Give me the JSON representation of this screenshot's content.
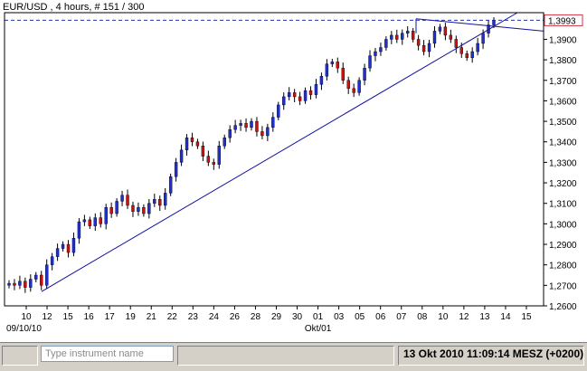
{
  "window": {
    "title": "EUR/USD , 4 hours, # 151 / 300"
  },
  "price_tag": "1,3993",
  "y_ticks": [
    "1,3900",
    "1,3800",
    "1,3700",
    "1,3600",
    "1,3500",
    "1,3400",
    "1,3300",
    "1,3200",
    "1,3100",
    "1,3000",
    "1,2900",
    "1,2800",
    "1,2700",
    "1,2600"
  ],
  "x_ticks": [
    "10",
    "12",
    "15",
    "16",
    "17",
    "19",
    "21",
    "22",
    "23",
    "24",
    "26",
    "28",
    "29",
    "30",
    "01",
    "03",
    "05",
    "06",
    "07",
    "08",
    "10",
    "12",
    "13",
    "14",
    "15"
  ],
  "x_sublabels": {
    "start_date": "09/10/10",
    "month": "Okt/01"
  },
  "colors": {
    "up": "#1f2fd0",
    "down": "#cc1010",
    "trend": "#1010a0",
    "level": "#2030b0",
    "tag": "#d03040"
  },
  "status": {
    "search_placeholder": "Type instrument name",
    "datetime": "13 Okt 2010 11:09:14  MESZ (+0200)"
  },
  "chart_data": {
    "type": "candlestick",
    "title": "EUR/USD , 4 hours, # 151 / 300",
    "ylim": [
      1.26,
      1.403
    ],
    "current_price": 1.3993,
    "x_categories": [
      "10",
      "12",
      "15",
      "16",
      "17",
      "19",
      "21",
      "22",
      "23",
      "24",
      "26",
      "28",
      "29",
      "30",
      "01",
      "03",
      "05",
      "06",
      "07",
      "08",
      "10",
      "12",
      "13",
      "14",
      "15"
    ],
    "closes": [
      1.271,
      1.27,
      1.272,
      1.269,
      1.273,
      1.275,
      1.27,
      1.28,
      1.284,
      1.288,
      1.29,
      1.286,
      1.293,
      1.301,
      1.302,
      1.299,
      1.303,
      1.3,
      1.308,
      1.305,
      1.311,
      1.314,
      1.309,
      1.306,
      1.308,
      1.305,
      1.31,
      1.312,
      1.309,
      1.315,
      1.323,
      1.33,
      1.336,
      1.342,
      1.34,
      1.338,
      1.333,
      1.33,
      1.329,
      1.338,
      1.342,
      1.346,
      1.348,
      1.349,
      1.347,
      1.35,
      1.345,
      1.343,
      1.347,
      1.352,
      1.358,
      1.362,
      1.364,
      1.362,
      1.36,
      1.365,
      1.363,
      1.368,
      1.372,
      1.378,
      1.379,
      1.376,
      1.37,
      1.366,
      1.364,
      1.37,
      1.376,
      1.382,
      1.384,
      1.386,
      1.39,
      1.392,
      1.39,
      1.393,
      1.394,
      1.39,
      1.387,
      1.384,
      1.388,
      1.394,
      1.396,
      1.392,
      1.39,
      1.386,
      1.383,
      1.381,
      1.384,
      1.388,
      1.393,
      1.397,
      1.3993
    ]
  }
}
